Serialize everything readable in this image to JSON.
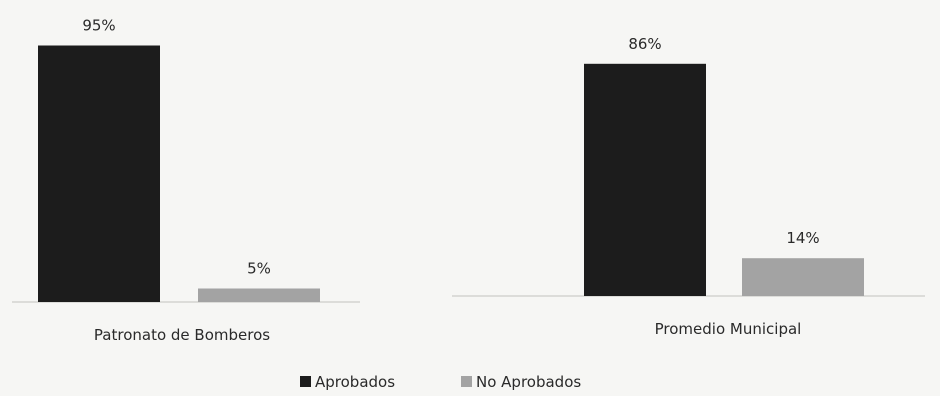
{
  "chart_data": {
    "type": "bar",
    "categories": [
      "Patronato de Bomberos",
      "Promedio Municipal"
    ],
    "series": [
      {
        "name": "Aprobados",
        "values": [
          95,
          86
        ],
        "labels": [
          "95%",
          "86%"
        ],
        "color": "#1c1c1c"
      },
      {
        "name": "No Aprobados",
        "values": [
          5,
          14
        ],
        "labels": [
          "5%",
          "14%"
        ],
        "color": "#a3a3a3"
      }
    ],
    "ylim": [
      0,
      100
    ],
    "grid": false,
    "legend": "bottom"
  }
}
